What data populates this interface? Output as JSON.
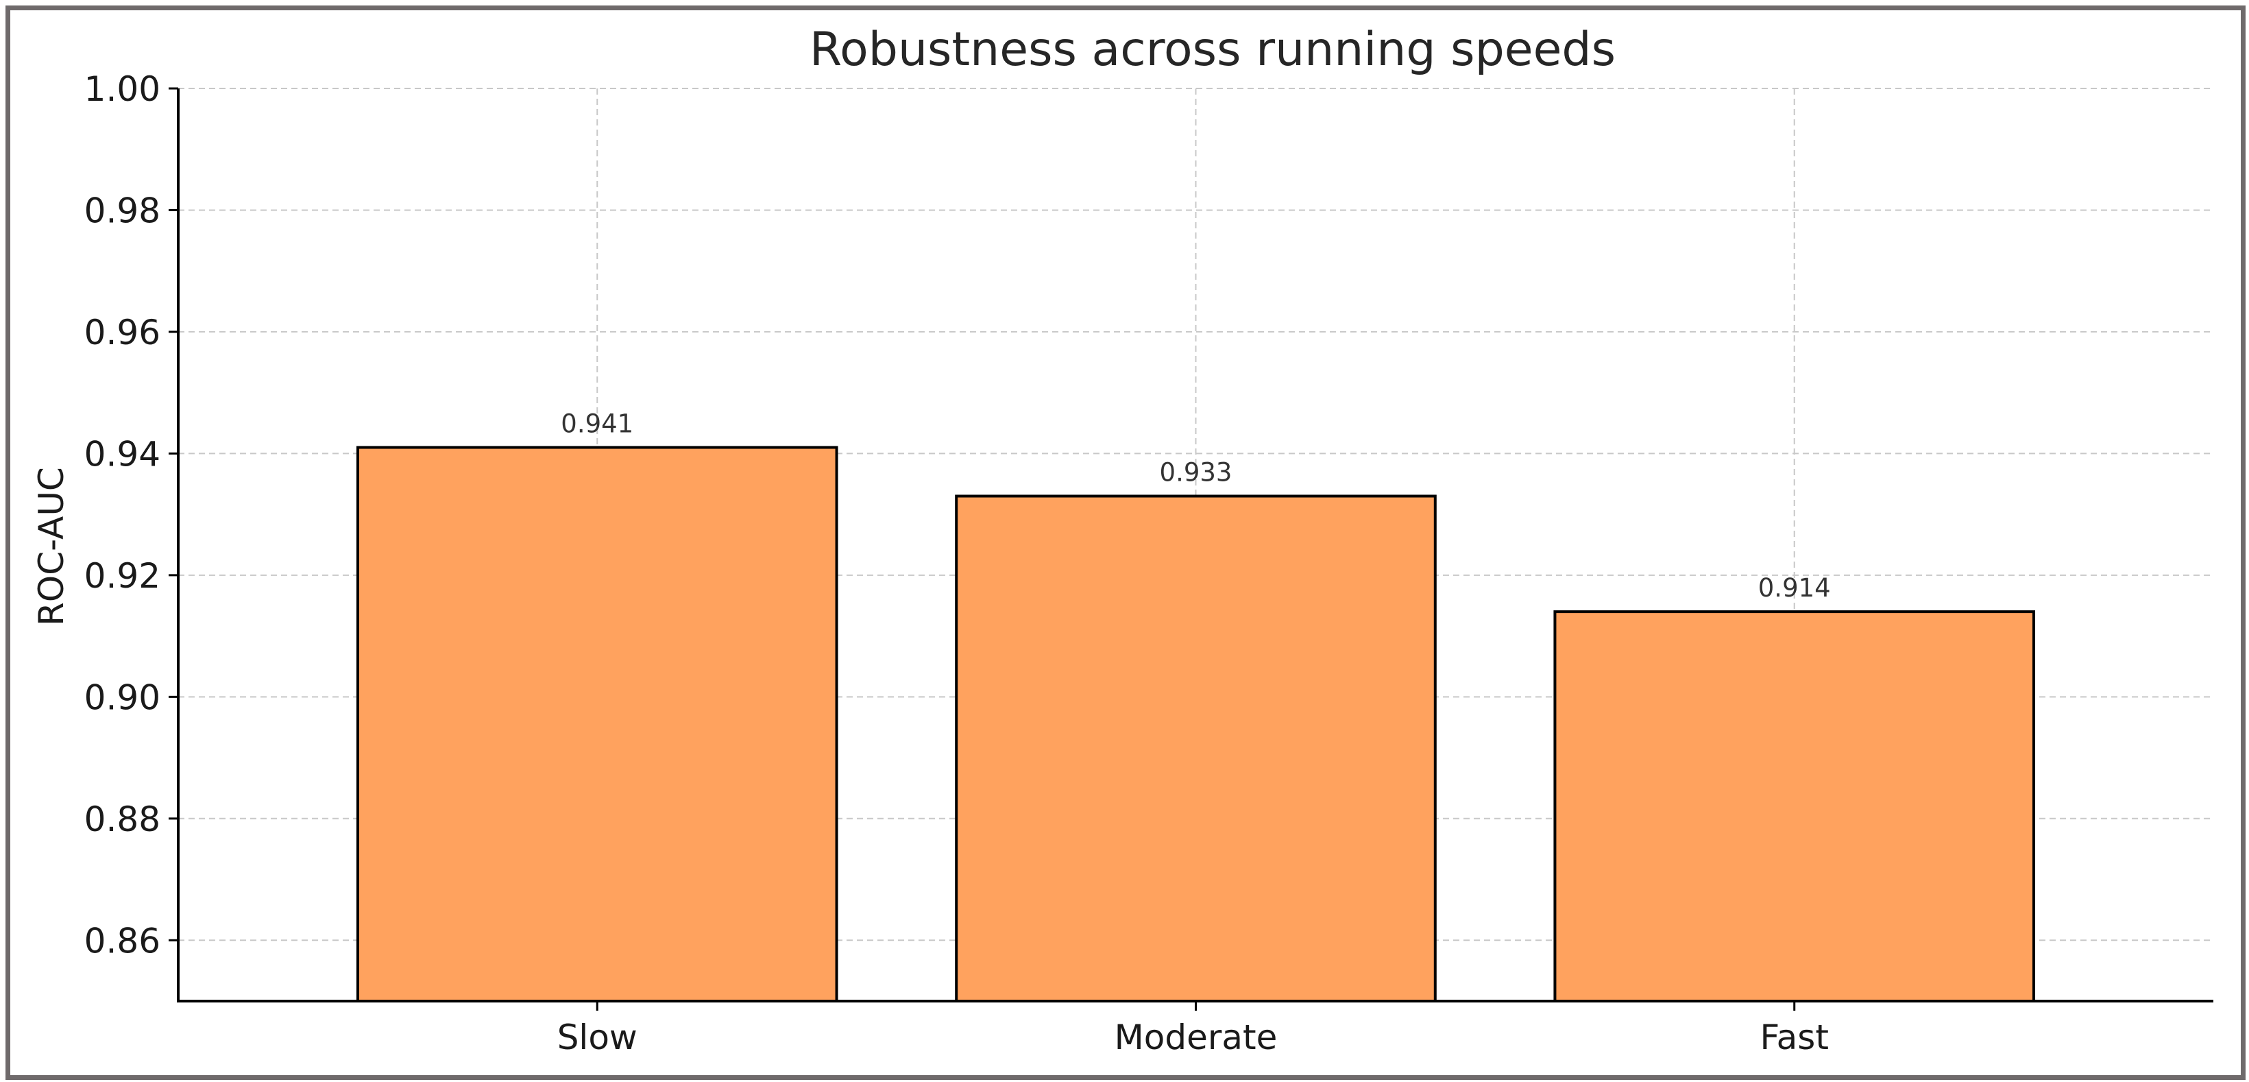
{
  "chart_data": {
    "type": "bar",
    "title": "Robustness across running speeds",
    "xlabel": "",
    "ylabel": "ROC-AUC",
    "categories": [
      "Slow",
      "Moderate",
      "Fast"
    ],
    "values": [
      0.941,
      0.933,
      0.914
    ],
    "value_labels": [
      "0.941",
      "0.933",
      "0.914"
    ],
    "ylim": [
      0.85,
      1.0
    ],
    "yticks": [
      0.86,
      0.88,
      0.9,
      0.92,
      0.94,
      0.96,
      0.98,
      1.0
    ],
    "ytick_labels": [
      "0.86",
      "0.88",
      "0.90",
      "0.92",
      "0.94",
      "0.96",
      "0.98",
      "1.00"
    ],
    "grid": true,
    "bar_color": "#ffa25e",
    "bar_edge_color": "#000000"
  }
}
